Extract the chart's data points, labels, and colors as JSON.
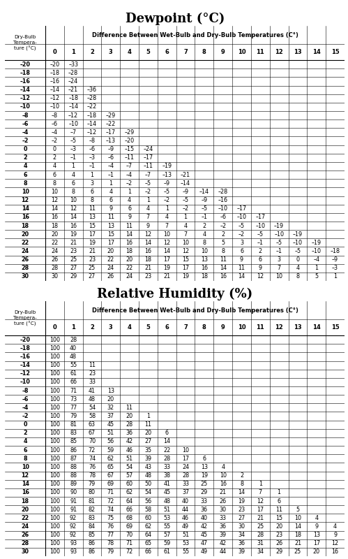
{
  "title1": "Dewpoint (°C)",
  "title2": "Relative Humidity (%)",
  "col_header": "Difference Between Wet-Bulb and Dry-Bulb Temperatures (C°)",
  "row_label_header": "Dry-Bulb\nTempera-\nture (°C)",
  "col_labels": [
    "0",
    "1",
    "2",
    "3",
    "4",
    "5",
    "6",
    "7",
    "8",
    "9",
    "10",
    "11",
    "12",
    "13",
    "14",
    "15"
  ],
  "dry_bulb_temps": [
    "–20",
    "–18",
    "–16",
    "–14",
    "–12",
    "–10",
    "–8",
    "–6",
    "–4",
    "–2",
    "0",
    "2",
    "4",
    "6",
    "8",
    "10",
    "12",
    "14",
    "16",
    "18",
    "20",
    "22",
    "24",
    "26",
    "28",
    "30"
  ],
  "dewpoint_data": [
    [
      "–20",
      "–33",
      "",
      "",
      "",
      "",
      "",
      "",
      "",
      "",
      "",
      "",
      "",
      "",
      "",
      ""
    ],
    [
      "–18",
      "–28",
      "",
      "",
      "",
      "",
      "",
      "",
      "",
      "",
      "",
      "",
      "",
      "",
      "",
      ""
    ],
    [
      "–16",
      "–24",
      "",
      "",
      "",
      "",
      "",
      "",
      "",
      "",
      "",
      "",
      "",
      "",
      "",
      ""
    ],
    [
      "–14",
      "–21",
      "–36",
      "",
      "",
      "",
      "",
      "",
      "",
      "",
      "",
      "",
      "",
      "",
      "",
      ""
    ],
    [
      "–12",
      "–18",
      "–28",
      "",
      "",
      "",
      "",
      "",
      "",
      "",
      "",
      "",
      "",
      "",
      "",
      ""
    ],
    [
      "–10",
      "–14",
      "–22",
      "",
      "",
      "",
      "",
      "",
      "",
      "",
      "",
      "",
      "",
      "",
      "",
      ""
    ],
    [
      "–8",
      "–12",
      "–18",
      "–29",
      "",
      "",
      "",
      "",
      "",
      "",
      "",
      "",
      "",
      "",
      "",
      ""
    ],
    [
      "–6",
      "–10",
      "–14",
      "–22",
      "",
      "",
      "",
      "",
      "",
      "",
      "",
      "",
      "",
      "",
      "",
      ""
    ],
    [
      "–4",
      "–7",
      "–12",
      "–17",
      "–29",
      "",
      "",
      "",
      "",
      "",
      "",
      "",
      "",
      "",
      "",
      ""
    ],
    [
      "–2",
      "–5",
      "–8",
      "–13",
      "–20",
      "",
      "",
      "",
      "",
      "",
      "",
      "",
      "",
      "",
      "",
      ""
    ],
    [
      "0",
      "–3",
      "–6",
      "–9",
      "–15",
      "–24",
      "",
      "",
      "",
      "",
      "",
      "",
      "",
      "",
      "",
      ""
    ],
    [
      "2",
      "–1",
      "–3",
      "–6",
      "–11",
      "–17",
      "",
      "",
      "",
      "",
      "",
      "",
      "",
      "",
      "",
      ""
    ],
    [
      "4",
      "1",
      "–1",
      "–4",
      "–7",
      "–11",
      "–19",
      "",
      "",
      "",
      "",
      "",
      "",
      "",
      "",
      ""
    ],
    [
      "6",
      "4",
      "1",
      "–1",
      "–4",
      "–7",
      "–13",
      "–21",
      "",
      "",
      "",
      "",
      "",
      "",
      "",
      ""
    ],
    [
      "8",
      "6",
      "3",
      "1",
      "–2",
      "–5",
      "–9",
      "–14",
      "",
      "",
      "",
      "",
      "",
      "",
      "",
      ""
    ],
    [
      "10",
      "8",
      "6",
      "4",
      "1",
      "–2",
      "–5",
      "–9",
      "–14",
      "–28",
      "",
      "",
      "",
      "",
      "",
      ""
    ],
    [
      "12",
      "10",
      "8",
      "6",
      "4",
      "1",
      "–2",
      "–5",
      "–9",
      "–16",
      "",
      "",
      "",
      "",
      "",
      ""
    ],
    [
      "14",
      "12",
      "11",
      "9",
      "6",
      "4",
      "1",
      "–2",
      "–5",
      "–10",
      "–17",
      "",
      "",
      "",
      "",
      ""
    ],
    [
      "16",
      "14",
      "13",
      "11",
      "9",
      "7",
      "4",
      "1",
      "–1",
      "–6",
      "–10",
      "–17",
      "",
      "",
      "",
      ""
    ],
    [
      "18",
      "16",
      "15",
      "13",
      "11",
      "9",
      "7",
      "4",
      "2",
      "–2",
      "–5",
      "–10",
      "–19",
      "",
      "",
      ""
    ],
    [
      "20",
      "19",
      "17",
      "15",
      "14",
      "12",
      "10",
      "7",
      "4",
      "2",
      "–2",
      "–5",
      "–10",
      "–19",
      "",
      ""
    ],
    [
      "22",
      "21",
      "19",
      "17",
      "16",
      "14",
      "12",
      "10",
      "8",
      "5",
      "3",
      "–1",
      "–5",
      "–10",
      "–19",
      ""
    ],
    [
      "24",
      "23",
      "21",
      "20",
      "18",
      "16",
      "14",
      "12",
      "10",
      "8",
      "6",
      "2",
      "–1",
      "–5",
      "–10",
      "–18"
    ],
    [
      "26",
      "25",
      "23",
      "22",
      "20",
      "18",
      "17",
      "15",
      "13",
      "11",
      "9",
      "6",
      "3",
      "0",
      "–4",
      "–9"
    ],
    [
      "28",
      "27",
      "25",
      "24",
      "22",
      "21",
      "19",
      "17",
      "16",
      "14",
      "11",
      "9",
      "7",
      "4",
      "1",
      "–3"
    ],
    [
      "30",
      "29",
      "27",
      "26",
      "24",
      "23",
      "21",
      "19",
      "18",
      "16",
      "14",
      "12",
      "10",
      "8",
      "5",
      "1"
    ]
  ],
  "rh_data": [
    [
      "100",
      "28",
      "",
      "",
      "",
      "",
      "",
      "",
      "",
      "",
      "",
      "",
      "",
      "",
      "",
      ""
    ],
    [
      "100",
      "40",
      "",
      "",
      "",
      "",
      "",
      "",
      "",
      "",
      "",
      "",
      "",
      "",
      "",
      ""
    ],
    [
      "100",
      "48",
      "",
      "",
      "",
      "",
      "",
      "",
      "",
      "",
      "",
      "",
      "",
      "",
      "",
      ""
    ],
    [
      "100",
      "55",
      "11",
      "",
      "",
      "",
      "",
      "",
      "",
      "",
      "",
      "",
      "",
      "",
      "",
      ""
    ],
    [
      "100",
      "61",
      "23",
      "",
      "",
      "",
      "",
      "",
      "",
      "",
      "",
      "",
      "",
      "",
      "",
      ""
    ],
    [
      "100",
      "66",
      "33",
      "",
      "",
      "",
      "",
      "",
      "",
      "",
      "",
      "",
      "",
      "",
      "",
      ""
    ],
    [
      "100",
      "71",
      "41",
      "13",
      "",
      "",
      "",
      "",
      "",
      "",
      "",
      "",
      "",
      "",
      "",
      ""
    ],
    [
      "100",
      "73",
      "48",
      "20",
      "",
      "",
      "",
      "",
      "",
      "",
      "",
      "",
      "",
      "",
      "",
      ""
    ],
    [
      "100",
      "77",
      "54",
      "32",
      "11",
      "",
      "",
      "",
      "",
      "",
      "",
      "",
      "",
      "",
      "",
      ""
    ],
    [
      "100",
      "79",
      "58",
      "37",
      "20",
      "1",
      "",
      "",
      "",
      "",
      "",
      "",
      "",
      "",
      "",
      ""
    ],
    [
      "100",
      "81",
      "63",
      "45",
      "28",
      "11",
      "",
      "",
      "",
      "",
      "",
      "",
      "",
      "",
      "",
      ""
    ],
    [
      "100",
      "83",
      "67",
      "51",
      "36",
      "20",
      "6",
      "",
      "",
      "",
      "",
      "",
      "",
      "",
      "",
      ""
    ],
    [
      "100",
      "85",
      "70",
      "56",
      "42",
      "27",
      "14",
      "",
      "",
      "",
      "",
      "",
      "",
      "",
      "",
      ""
    ],
    [
      "100",
      "86",
      "72",
      "59",
      "46",
      "35",
      "22",
      "10",
      "",
      "",
      "",
      "",
      "",
      "",
      "",
      ""
    ],
    [
      "100",
      "87",
      "74",
      "62",
      "51",
      "39",
      "28",
      "17",
      "6",
      "",
      "",
      "",
      "",
      "",
      "",
      ""
    ],
    [
      "100",
      "88",
      "76",
      "65",
      "54",
      "43",
      "33",
      "24",
      "13",
      "4",
      "",
      "",
      "",
      "",
      "",
      ""
    ],
    [
      "100",
      "88",
      "78",
      "67",
      "57",
      "48",
      "38",
      "28",
      "19",
      "10",
      "2",
      "",
      "",
      "",
      "",
      ""
    ],
    [
      "100",
      "89",
      "79",
      "69",
      "60",
      "50",
      "41",
      "33",
      "25",
      "16",
      "8",
      "1",
      "",
      "",
      "",
      ""
    ],
    [
      "100",
      "90",
      "80",
      "71",
      "62",
      "54",
      "45",
      "37",
      "29",
      "21",
      "14",
      "7",
      "1",
      "",
      "",
      ""
    ],
    [
      "100",
      "91",
      "81",
      "72",
      "64",
      "56",
      "48",
      "40",
      "33",
      "26",
      "19",
      "12",
      "6",
      "",
      "",
      ""
    ],
    [
      "100",
      "91",
      "82",
      "74",
      "66",
      "58",
      "51",
      "44",
      "36",
      "30",
      "23",
      "17",
      "11",
      "5",
      "",
      ""
    ],
    [
      "100",
      "92",
      "83",
      "75",
      "68",
      "60",
      "53",
      "46",
      "40",
      "33",
      "27",
      "21",
      "15",
      "10",
      "4",
      ""
    ],
    [
      "100",
      "92",
      "84",
      "76",
      "69",
      "62",
      "55",
      "49",
      "42",
      "36",
      "30",
      "25",
      "20",
      "14",
      "9",
      "4"
    ],
    [
      "100",
      "92",
      "85",
      "77",
      "70",
      "64",
      "57",
      "51",
      "45",
      "39",
      "34",
      "28",
      "23",
      "18",
      "13",
      "9"
    ],
    [
      "100",
      "93",
      "86",
      "78",
      "71",
      "65",
      "59",
      "53",
      "47",
      "42",
      "36",
      "31",
      "26",
      "21",
      "17",
      "12"
    ],
    [
      "100",
      "93",
      "86",
      "79",
      "72",
      "66",
      "61",
      "55",
      "49",
      "44",
      "39",
      "34",
      "29",
      "25",
      "20",
      "16"
    ]
  ],
  "bg_color": "#c8c8c8",
  "header_bg": "#c8c8c8",
  "shade_color": "#c8c8c8",
  "white": "#ffffff",
  "title_fontsize": 13,
  "header_fontsize": 6.0,
  "data_fontsize": 5.8
}
